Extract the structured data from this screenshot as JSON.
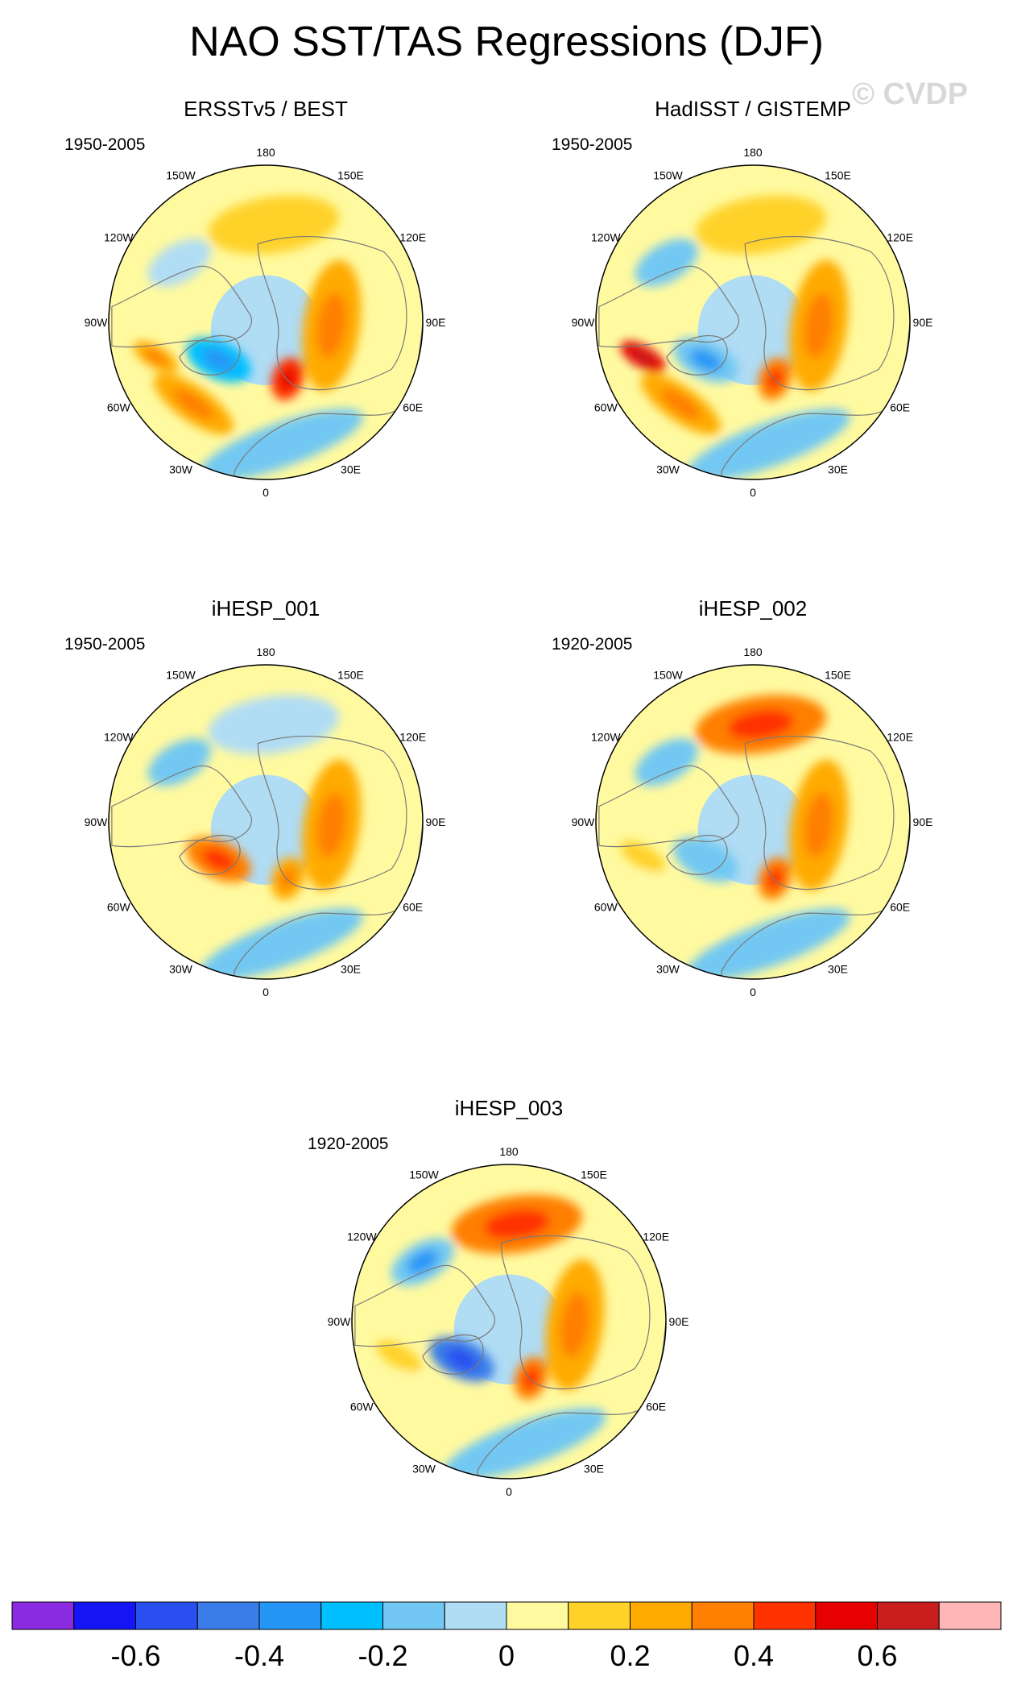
{
  "title": "NAO SST/TAS Regressions (DJF)",
  "watermark": "© CVDP",
  "chart_data": [
    {
      "type": "heatmap",
      "projection": "north polar stereographic",
      "title": "ERSSTv5 / BEST",
      "period": "1950-2005",
      "lon_labels": [
        "180",
        "150E",
        "120E",
        "90E",
        "60E",
        "30E",
        "0",
        "30W",
        "60W",
        "90W",
        "120W",
        "150W"
      ],
      "pattern": {
        "pacific": 0.15,
        "atlantic_dipole_south": 0.25,
        "labrador_greenland": -0.25,
        "eurasia": 0.22,
        "europe": 0.4,
        "north_africa": -0.12,
        "gulf_coast_north_america": 0.2,
        "alaska": -0.1
      }
    },
    {
      "type": "heatmap",
      "projection": "north polar stereographic",
      "title": "HadISST / GISTEMP",
      "period": "1950-2005",
      "lon_labels": [
        "180",
        "150E",
        "120E",
        "90E",
        "60E",
        "30E",
        "0",
        "30W",
        "60W",
        "90W",
        "120W",
        "150W"
      ],
      "pattern": {
        "pacific": 0.15,
        "atlantic_dipole_south": 0.2,
        "labrador_greenland": -0.2,
        "eurasia": 0.25,
        "europe": 0.35,
        "north_africa": -0.12,
        "gulf_coast_north_america": 0.55,
        "alaska": -0.15
      }
    },
    {
      "type": "heatmap",
      "projection": "north polar stereographic",
      "title": "iHESP_001",
      "period": "1950-2005",
      "lon_labels": [
        "180",
        "150E",
        "120E",
        "90E",
        "60E",
        "30E",
        "0",
        "30W",
        "60W",
        "90W",
        "120W",
        "150W"
      ],
      "pattern": {
        "pacific": -0.1,
        "atlantic_dipole_south": 0.05,
        "labrador_greenland": 0.3,
        "eurasia": 0.2,
        "europe": 0.2,
        "north_africa": -0.12,
        "gulf_coast_north_america": 0.05,
        "alaska": -0.12
      }
    },
    {
      "type": "heatmap",
      "projection": "north polar stereographic",
      "title": "iHESP_002",
      "period": "1920-2005",
      "lon_labels": [
        "180",
        "150E",
        "120E",
        "90E",
        "60E",
        "30E",
        "0",
        "30W",
        "60W",
        "90W",
        "120W",
        "150W"
      ],
      "pattern": {
        "pacific": 0.3,
        "atlantic_dipole_south": 0.05,
        "labrador_greenland": -0.15,
        "eurasia": 0.25,
        "europe": 0.3,
        "north_africa": -0.12,
        "gulf_coast_north_america": 0.1,
        "alaska": -0.15
      }
    },
    {
      "type": "heatmap",
      "projection": "north polar stereographic",
      "title": "iHESP_003",
      "period": "1920-2005",
      "lon_labels": [
        "180",
        "150E",
        "120E",
        "90E",
        "60E",
        "30E",
        "0",
        "30W",
        "60W",
        "90W",
        "120W",
        "150W"
      ],
      "pattern": {
        "pacific": 0.3,
        "atlantic_dipole_south": 0.05,
        "labrador_greenland": -0.45,
        "eurasia": 0.22,
        "europe": 0.3,
        "north_africa": -0.12,
        "gulf_coast_north_america": 0.1,
        "alaska": -0.2
      }
    }
  ],
  "colorbar": {
    "levels": [
      -0.7,
      -0.6,
      -0.5,
      -0.4,
      -0.3,
      -0.2,
      -0.1,
      0,
      0.1,
      0.2,
      0.3,
      0.4,
      0.5,
      0.6,
      0.7
    ],
    "colors": [
      "#8a2be2",
      "#1414f5",
      "#2a4ff0",
      "#3a7de8",
      "#2596f5",
      "#00bfff",
      "#72c8f2",
      "#b0dcf4",
      "#fffaa0",
      "#ffd22a",
      "#ffaa00",
      "#ff7f00",
      "#ff3300",
      "#e60000",
      "#c81e1e",
      "#ffb6b6"
    ],
    "tick_labels": [
      "-0.6",
      "-0.4",
      "-0.2",
      "0",
      "0.2",
      "0.4",
      "0.6"
    ],
    "tick_values": [
      -0.6,
      -0.4,
      -0.2,
      0,
      0.2,
      0.4,
      0.6
    ]
  }
}
